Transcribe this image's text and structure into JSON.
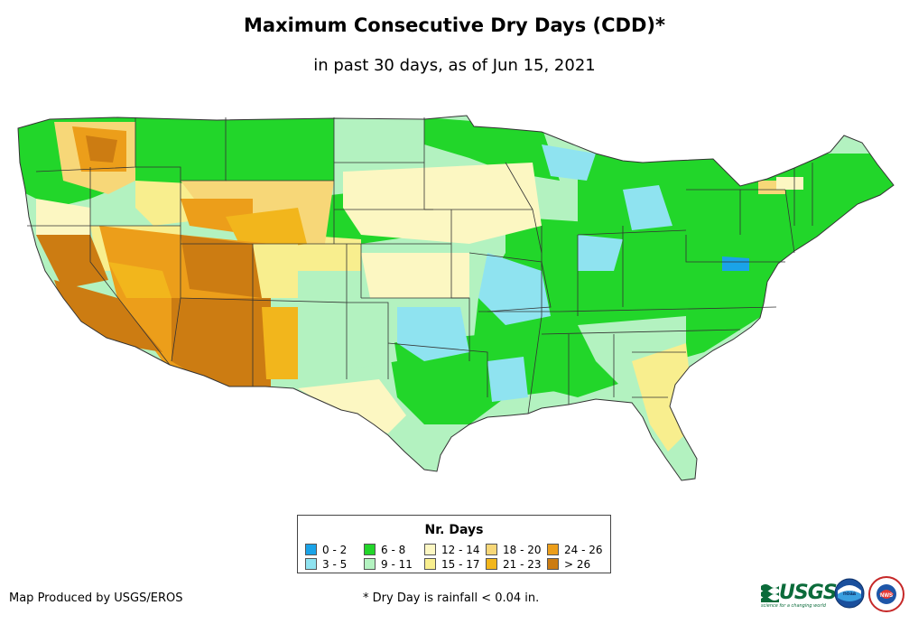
{
  "title": "Maximum Consecutive Dry Days (CDD)*",
  "subtitle": "in past 30 days, as of Jun 15, 2021",
  "legend": {
    "title": "Nr. Days",
    "items": [
      {
        "label": "0 - 2",
        "color": "#1aa3e8"
      },
      {
        "label": "3 - 5",
        "color": "#8fe3f0"
      },
      {
        "label": "6 - 8",
        "color": "#22d62a"
      },
      {
        "label": "9 - 11",
        "color": "#b3f2c0"
      },
      {
        "label": "12 - 14",
        "color": "#fcf7c2"
      },
      {
        "label": "15 - 17",
        "color": "#f8ee8e"
      },
      {
        "label": "18 - 20",
        "color": "#f7d778"
      },
      {
        "label": "21 - 23",
        "color": "#f2b61c"
      },
      {
        "label": "24 - 26",
        "color": "#ec9e1a"
      },
      {
        "label": "> 26",
        "color": "#cc7c12"
      }
    ]
  },
  "footer": {
    "credit": "Map Produced by USGS/EROS",
    "note": "* Dry Day is rainfall < 0.04 in."
  },
  "logos": {
    "usgs": "USGS",
    "usgs_tagline": "science for a changing world",
    "noaa": "noaa",
    "nws": "NWS"
  }
}
